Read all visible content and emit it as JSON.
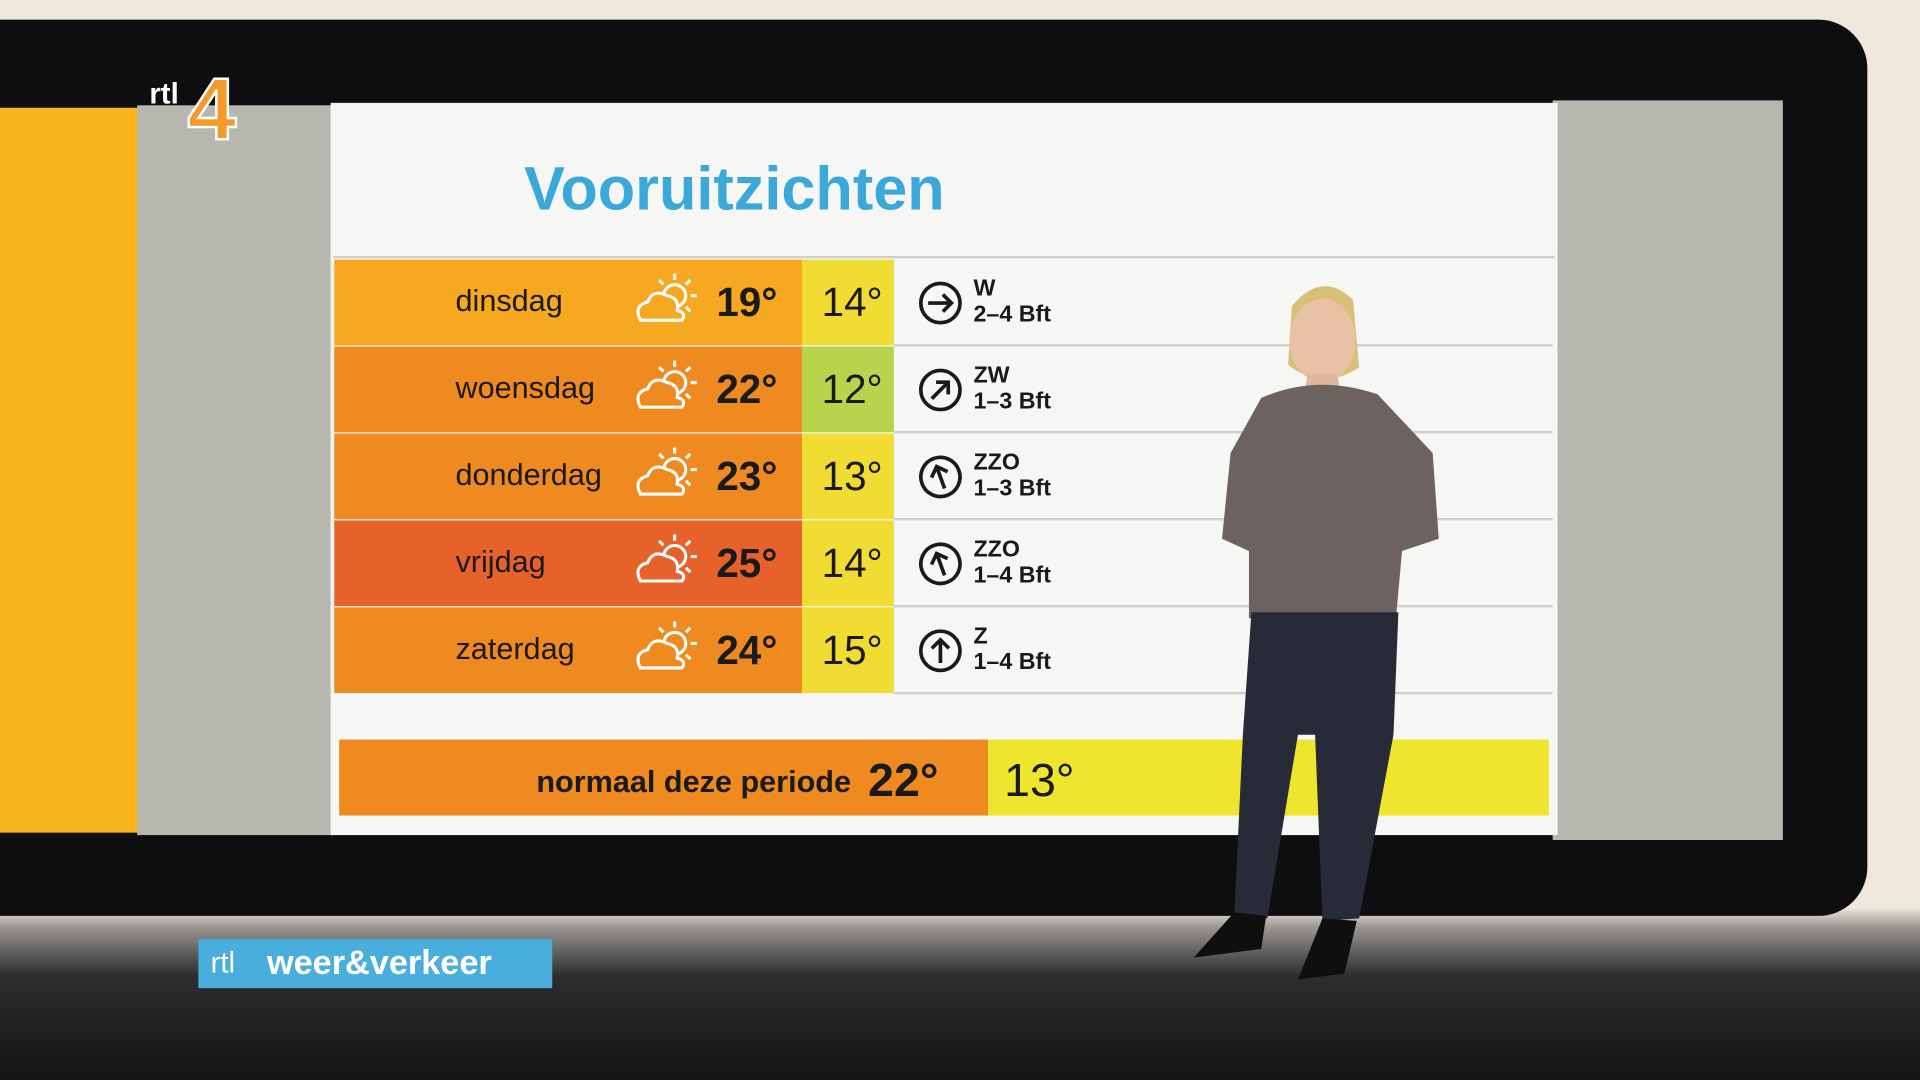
{
  "logo": {
    "name": "rtl",
    "number": "4"
  },
  "title": "Vooruitzichten",
  "forecast": [
    {
      "day": "dinsdag",
      "max": "19°",
      "min": "14°",
      "wind_direction": "W",
      "wind_force": "2–4 Bft"
    },
    {
      "day": "woensdag",
      "max": "22°",
      "min": "12°",
      "wind_direction": "ZW",
      "wind_force": "1–3 Bft"
    },
    {
      "day": "donderdag",
      "max": "23°",
      "min": "13°",
      "wind_direction": "ZZO",
      "wind_force": "1–3 Bft"
    },
    {
      "day": "vrijdag",
      "max": "25°",
      "min": "14°",
      "wind_direction": "ZZO",
      "wind_force": "1–4 Bft"
    },
    {
      "day": "zaterdag",
      "max": "24°",
      "min": "15°",
      "wind_direction": "Z",
      "wind_force": "1–4 Bft"
    }
  ],
  "normal": {
    "label": "normaal deze periode",
    "max": "22°",
    "min": "13°"
  },
  "branding": {
    "network": "rtl",
    "program": "weer&verkeer"
  }
}
